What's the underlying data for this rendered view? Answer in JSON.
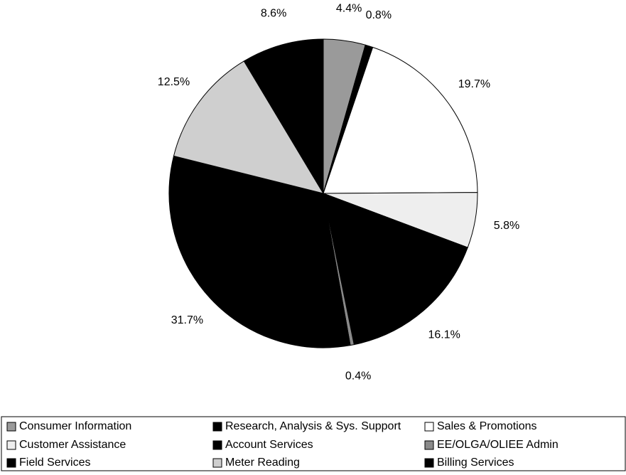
{
  "chart_data": {
    "type": "pie",
    "categories": [
      "Consumer Information",
      "Research, Analysis & Sys. Support",
      "Sales & Promotions",
      "Customer Assistance",
      "Account Services",
      "EE/OLGA/OLIEE Admin",
      "Field Services",
      "Meter Reading",
      "Billing Services"
    ],
    "values": [
      4.4,
      0.8,
      19.7,
      5.8,
      16.1,
      0.4,
      31.7,
      12.5,
      8.6
    ],
    "value_labels": [
      "4.4%",
      "0.8%",
      "19.7%",
      "5.8%",
      "16.1%",
      "0.4%",
      "31.7%",
      "12.5%",
      "8.6%"
    ],
    "colors": [
      "#9a9a9a",
      "#000000",
      "#ffffff",
      "#eeeeee",
      "#000000",
      "#8a8a8a",
      "#000000",
      "#cfcfcf",
      "#000000"
    ],
    "legend": "bottom"
  }
}
